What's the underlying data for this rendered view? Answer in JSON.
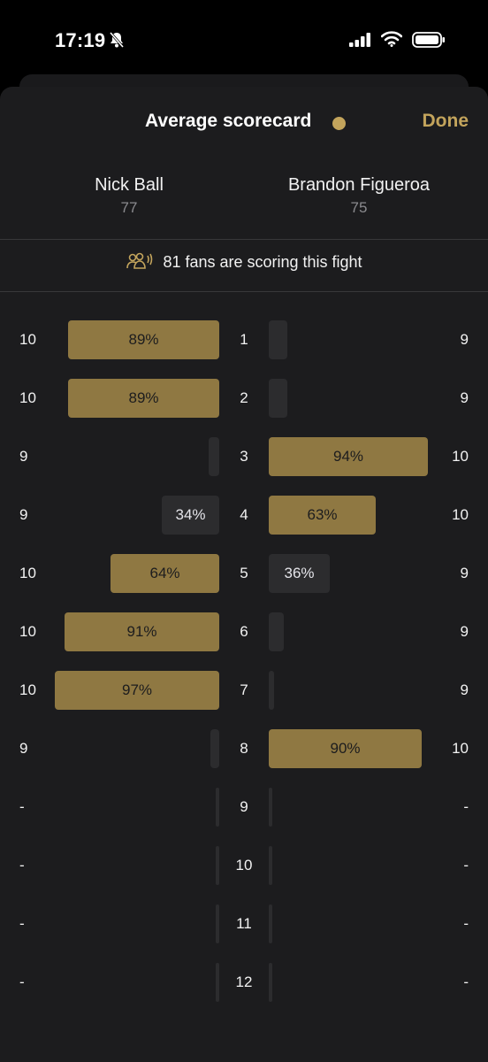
{
  "status": {
    "time": "17:19"
  },
  "header": {
    "title": "Average scorecard",
    "done_label": "Done",
    "accent": "#c3a45c"
  },
  "fighters": {
    "left": {
      "name": "Nick Ball",
      "total": "77"
    },
    "right": {
      "name": "Brandon Figueroa",
      "total": "75"
    }
  },
  "fans_text": "81 fans are scoring this fight",
  "rounds": [
    {
      "round": "1",
      "left_score": "10",
      "right_score": "9",
      "left_pct": 89,
      "right_pct": 11,
      "left_label": "89%",
      "right_label": ""
    },
    {
      "round": "2",
      "left_score": "10",
      "right_score": "9",
      "left_pct": 89,
      "right_pct": 11,
      "left_label": "89%",
      "right_label": ""
    },
    {
      "round": "3",
      "left_score": "9",
      "right_score": "10",
      "left_pct": 6,
      "right_pct": 94,
      "left_label": "",
      "right_label": "94%"
    },
    {
      "round": "4",
      "left_score": "9",
      "right_score": "10",
      "left_pct": 34,
      "right_pct": 63,
      "left_label": "34%",
      "right_label": "63%"
    },
    {
      "round": "5",
      "left_score": "10",
      "right_score": "9",
      "left_pct": 64,
      "right_pct": 36,
      "left_label": "64%",
      "right_label": "36%"
    },
    {
      "round": "6",
      "left_score": "10",
      "right_score": "9",
      "left_pct": 91,
      "right_pct": 9,
      "left_label": "91%",
      "right_label": ""
    },
    {
      "round": "7",
      "left_score": "10",
      "right_score": "9",
      "left_pct": 97,
      "right_pct": 3,
      "left_label": "97%",
      "right_label": ""
    },
    {
      "round": "8",
      "left_score": "9",
      "right_score": "10",
      "left_pct": 5,
      "right_pct": 90,
      "left_label": "",
      "right_label": "90%"
    },
    {
      "round": "9",
      "left_score": "-",
      "right_score": "-",
      "left_pct": 0,
      "right_pct": 0,
      "left_label": "",
      "right_label": ""
    },
    {
      "round": "10",
      "left_score": "-",
      "right_score": "-",
      "left_pct": 0,
      "right_pct": 0,
      "left_label": "",
      "right_label": ""
    },
    {
      "round": "11",
      "left_score": "-",
      "right_score": "-",
      "left_pct": 0,
      "right_pct": 0,
      "left_label": "",
      "right_label": ""
    },
    {
      "round": "12",
      "left_score": "-",
      "right_score": "-",
      "left_pct": 0,
      "right_pct": 0,
      "left_label": "",
      "right_label": ""
    }
  ]
}
